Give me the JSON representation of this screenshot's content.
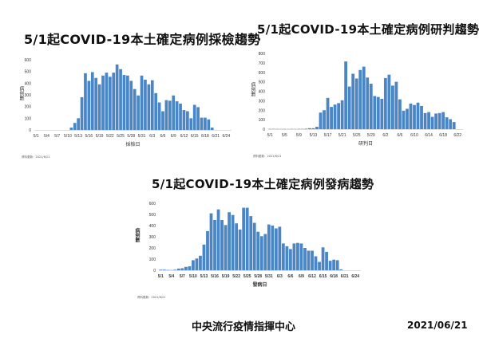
{
  "footer": {
    "agency": "中央流行疫情指揮中心",
    "date": "2021/06/21"
  },
  "chart_data": [
    {
      "type": "bar",
      "title": "5/1起COVID-19本土確定病例採檢趨勢",
      "xlabel": "採檢日",
      "ylabel": "病例數",
      "source": "資料更新：2021/6/21",
      "ylim": [
        0,
        600
      ],
      "yticks": [
        0,
        100,
        200,
        300,
        400,
        500,
        600
      ],
      "start_date": "5/1",
      "num_days": 56,
      "x_ticks": [
        "5/1",
        "5/4",
        "5/7",
        "5/10",
        "5/13",
        "5/16",
        "5/19",
        "5/22",
        "5/25",
        "5/28",
        "5/31",
        "6/3",
        "6/6",
        "6/9",
        "6/12",
        "6/15",
        "6/18",
        "6/21",
        "6/24"
      ],
      "tick_step": 3,
      "color": "#4a86c5",
      "values": [
        0,
        0,
        0,
        0,
        0,
        0,
        0,
        0,
        0,
        0,
        20,
        60,
        100,
        280,
        485,
        420,
        495,
        445,
        390,
        465,
        490,
        455,
        490,
        560,
        520,
        470,
        465,
        420,
        350,
        295,
        465,
        430,
        390,
        425,
        315,
        235,
        160,
        255,
        250,
        295,
        245,
        225,
        170,
        160,
        100,
        215,
        195,
        105,
        105,
        90,
        20
      ]
    },
    {
      "type": "bar",
      "title": "5/1起COVID-19本土確定病例研判趨勢",
      "xlabel": "研判日",
      "ylabel": "病例數",
      "source": "資料更新：2021/6/21",
      "ylim": [
        0,
        800
      ],
      "yticks": [
        0,
        100,
        200,
        300,
        400,
        500,
        600,
        700,
        800
      ],
      "start_date": "5/1",
      "num_days": 54,
      "x_ticks": [
        "5/1",
        "5/5",
        "5/9",
        "5/13",
        "5/17",
        "5/21",
        "5/25",
        "5/29",
        "6/2",
        "6/6",
        "6/10",
        "6/14",
        "6/18",
        "6/22"
      ],
      "tick_step": 4,
      "color": "#4a86c5",
      "values": [
        3,
        3,
        3,
        2,
        3,
        2,
        3,
        2,
        3,
        3,
        5,
        10,
        10,
        25,
        175,
        200,
        330,
        235,
        260,
        275,
        305,
        715,
        450,
        585,
        535,
        625,
        660,
        545,
        480,
        350,
        340,
        320,
        540,
        575,
        460,
        500,
        315,
        195,
        215,
        270,
        255,
        280,
        245,
        170,
        180,
        130,
        165,
        170,
        180,
        125,
        105,
        75
      ]
    },
    {
      "type": "bar",
      "title": "5/1起COVID-19本土確定病例發病趨勢",
      "xlabel": "發病日",
      "ylabel": "病例數",
      "source": "資料更新：2021/6/21",
      "ylim": [
        0,
        600
      ],
      "yticks": [
        0,
        100,
        200,
        300,
        400,
        500,
        600
      ],
      "start_date": "5/1",
      "num_days": 56,
      "x_ticks": [
        "5/1",
        "5/4",
        "5/7",
        "5/10",
        "5/13",
        "5/16",
        "5/19",
        "5/22",
        "5/25",
        "5/28",
        "5/31",
        "6/3",
        "6/6",
        "6/9",
        "6/12",
        "6/15",
        "6/18",
        "6/21",
        "6/24"
      ],
      "tick_step": 3,
      "color": "#4a86c5",
      "values": [
        5,
        5,
        3,
        2,
        5,
        15,
        18,
        30,
        35,
        90,
        105,
        130,
        230,
        350,
        510,
        450,
        545,
        450,
        405,
        520,
        495,
        420,
        365,
        560,
        560,
        485,
        425,
        345,
        305,
        325,
        410,
        400,
        375,
        390,
        240,
        215,
        190,
        240,
        245,
        240,
        200,
        175,
        175,
        125,
        75,
        205,
        165,
        85,
        95,
        90,
        8
      ]
    }
  ]
}
